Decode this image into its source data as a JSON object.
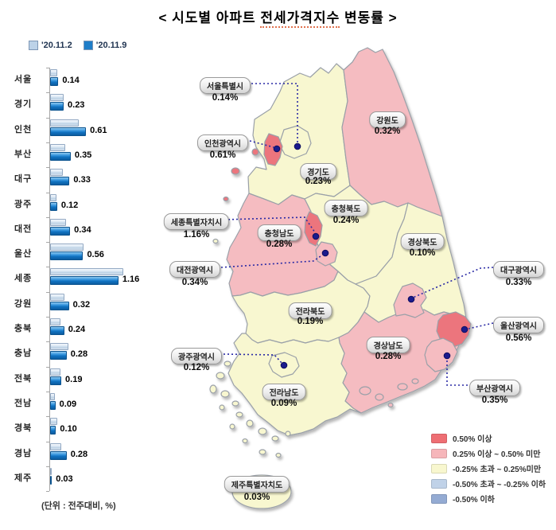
{
  "title_parts": {
    "pre": "< 시도별 아파트 ",
    "mid": "전세가격지수",
    "post": " 변동률 >"
  },
  "unit_note": "(단위 : 전주대비, %)",
  "chart_legend": [
    {
      "label": "'20.11.2",
      "color": "#bcd2e8"
    },
    {
      "label": "'20.11.9",
      "color": "#1e7dc8"
    }
  ],
  "chart_data": {
    "type": "bar",
    "orientation": "horizontal",
    "title": "시도별 아파트 전세가격지수 변동률",
    "unit": "전주대비, %",
    "categories": [
      "서울",
      "경기",
      "인천",
      "부산",
      "대구",
      "광주",
      "대전",
      "울산",
      "세종",
      "강원",
      "충북",
      "충남",
      "전북",
      "전남",
      "경북",
      "경남",
      "제주"
    ],
    "series": [
      {
        "name": "'20.11.2",
        "estimated": true,
        "values": [
          0.12,
          0.23,
          0.48,
          0.25,
          0.21,
          0.11,
          0.27,
          0.57,
          1.24,
          0.24,
          0.17,
          0.31,
          0.17,
          0.08,
          0.12,
          0.19,
          0.01
        ]
      },
      {
        "name": "'20.11.9",
        "values": [
          0.14,
          0.23,
          0.61,
          0.35,
          0.33,
          0.12,
          0.34,
          0.56,
          1.16,
          0.32,
          0.24,
          0.28,
          0.19,
          0.09,
          0.1,
          0.28,
          0.03
        ]
      }
    ],
    "value_labels": [
      "0.14",
      "0.23",
      "0.61",
      "0.35",
      "0.33",
      "0.12",
      "0.34",
      "0.56",
      "1.16",
      "0.32",
      "0.24",
      "0.28",
      "0.19",
      "0.09",
      "0.10",
      "0.28",
      "0.03"
    ],
    "xlim": [
      0,
      1.3
    ]
  },
  "map": {
    "category_colors": {
      "red": "#ec757d",
      "pink": "#f5bcc1",
      "yellow": "#f8f7d0"
    },
    "labels": [
      {
        "id": "seoul",
        "name": "서울특별시",
        "value": "0.14%",
        "category": "yellow",
        "callout": true
      },
      {
        "id": "incheon",
        "name": "인천광역시",
        "value": "0.61%",
        "category": "red",
        "callout": true
      },
      {
        "id": "gyeonggi",
        "name": "경기도",
        "value": "0.23%",
        "category": "yellow",
        "callout": false
      },
      {
        "id": "gangwon",
        "name": "강원도",
        "value": "0.32%",
        "category": "pink",
        "callout": false
      },
      {
        "id": "chungbuk",
        "name": "충청북도",
        "value": "0.24%",
        "category": "yellow",
        "callout": false
      },
      {
        "id": "chungnam",
        "name": "충청남도",
        "value": "0.28%",
        "category": "pink",
        "callout": false
      },
      {
        "id": "sejong",
        "name": "세종특별자치시",
        "value": "1.16%",
        "category": "red",
        "callout": true
      },
      {
        "id": "daejeon",
        "name": "대전광역시",
        "value": "0.34%",
        "category": "pink",
        "callout": true
      },
      {
        "id": "gyeongbuk",
        "name": "경상북도",
        "value": "0.10%",
        "category": "yellow",
        "callout": false
      },
      {
        "id": "daegu",
        "name": "대구광역시",
        "value": "0.33%",
        "category": "pink",
        "callout": true
      },
      {
        "id": "jeonbuk",
        "name": "전라북도",
        "value": "0.19%",
        "category": "yellow",
        "callout": false
      },
      {
        "id": "gwangju",
        "name": "광주광역시",
        "value": "0.12%",
        "category": "yellow",
        "callout": true
      },
      {
        "id": "ulsan",
        "name": "울산광역시",
        "value": "0.56%",
        "category": "red",
        "callout": true
      },
      {
        "id": "gyeongnam",
        "name": "경상남도",
        "value": "0.28%",
        "category": "pink",
        "callout": false
      },
      {
        "id": "busan",
        "name": "부산광역시",
        "value": "0.35%",
        "category": "pink",
        "callout": true
      },
      {
        "id": "jeonnam",
        "name": "전라남도",
        "value": "0.09%",
        "category": "yellow",
        "callout": false
      },
      {
        "id": "jeju",
        "name": "제주특별자치도",
        "value": "0.03%",
        "category": "yellow",
        "callout": false
      }
    ],
    "legend": [
      {
        "label": "0.50% 이상",
        "color": "#ee6e73"
      },
      {
        "label": "0.25% 이상 ~  0.50% 미만",
        "color": "#f6b6ba"
      },
      {
        "label": "-0.25% 초과 ~  0.25%미만",
        "color": "#f8f7cf"
      },
      {
        "label": "-0.50% 초과 ~ -0.25% 이하",
        "color": "#c0d2e8"
      },
      {
        "label": "-0.50% 이하",
        "color": "#94abd3"
      }
    ]
  }
}
